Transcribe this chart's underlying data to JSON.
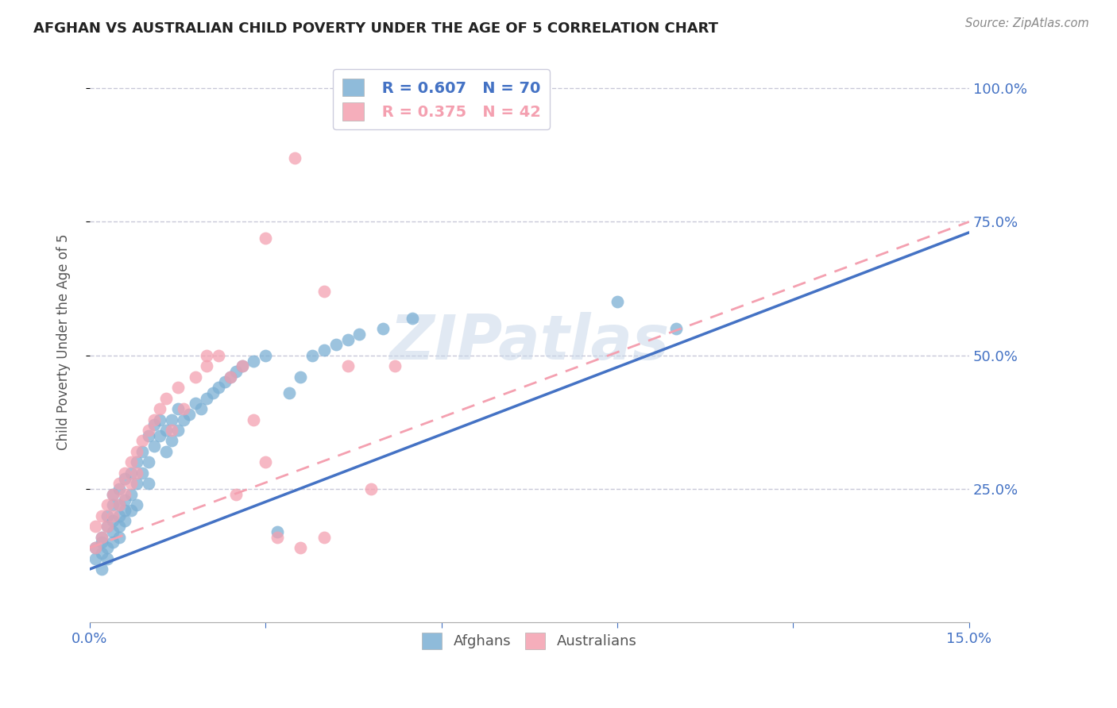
{
  "title": "AFGHAN VS AUSTRALIAN CHILD POVERTY UNDER THE AGE OF 5 CORRELATION CHART",
  "source": "Source: ZipAtlas.com",
  "ylabel": "Child Poverty Under the Age of 5",
  "xlim": [
    0.0,
    0.15
  ],
  "ylim": [
    0.0,
    1.05
  ],
  "yticks": [
    0.25,
    0.5,
    0.75,
    1.0
  ],
  "ytick_labels": [
    "25.0%",
    "50.0%",
    "75.0%",
    "100.0%"
  ],
  "xticks": [
    0.0,
    0.03,
    0.06,
    0.09,
    0.12,
    0.15
  ],
  "xtick_labels": [
    "0.0%",
    "",
    "",
    "",
    "",
    "15.0%"
  ],
  "legend_blue_R": "R = 0.607",
  "legend_blue_N": "N = 70",
  "legend_pink_R": "R = 0.375",
  "legend_pink_N": "N = 42",
  "blue_color": "#7BAFD4",
  "pink_color": "#F4A0B0",
  "blue_line_color": "#4472C4",
  "pink_line_color": "#F4A0B0",
  "grid_color": "#C8C8D8",
  "title_color": "#333333",
  "axis_label_color": "#4472C4",
  "watermark_color": "#C5D5E8",
  "watermark": "ZIPatlas",
  "afghans_x": [
    0.001,
    0.001,
    0.002,
    0.002,
    0.002,
    0.002,
    0.003,
    0.003,
    0.003,
    0.003,
    0.004,
    0.004,
    0.004,
    0.004,
    0.004,
    0.005,
    0.005,
    0.005,
    0.005,
    0.005,
    0.006,
    0.006,
    0.006,
    0.006,
    0.007,
    0.007,
    0.007,
    0.008,
    0.008,
    0.008,
    0.009,
    0.009,
    0.01,
    0.01,
    0.01,
    0.011,
    0.011,
    0.012,
    0.012,
    0.013,
    0.013,
    0.014,
    0.014,
    0.015,
    0.015,
    0.016,
    0.017,
    0.018,
    0.019,
    0.02,
    0.021,
    0.022,
    0.023,
    0.024,
    0.025,
    0.026,
    0.028,
    0.03,
    0.032,
    0.034,
    0.036,
    0.038,
    0.04,
    0.042,
    0.044,
    0.046,
    0.05,
    0.055,
    0.09,
    0.1
  ],
  "afghans_y": [
    0.14,
    0.12,
    0.13,
    0.15,
    0.1,
    0.16,
    0.18,
    0.12,
    0.2,
    0.14,
    0.17,
    0.22,
    0.15,
    0.19,
    0.24,
    0.2,
    0.16,
    0.22,
    0.18,
    0.25,
    0.23,
    0.19,
    0.27,
    0.21,
    0.28,
    0.24,
    0.21,
    0.3,
    0.26,
    0.22,
    0.32,
    0.28,
    0.3,
    0.35,
    0.26,
    0.33,
    0.37,
    0.35,
    0.38,
    0.36,
    0.32,
    0.38,
    0.34,
    0.4,
    0.36,
    0.38,
    0.39,
    0.41,
    0.4,
    0.42,
    0.43,
    0.44,
    0.45,
    0.46,
    0.47,
    0.48,
    0.49,
    0.5,
    0.17,
    0.43,
    0.46,
    0.5,
    0.51,
    0.52,
    0.53,
    0.54,
    0.55,
    0.57,
    0.6,
    0.55
  ],
  "australians_x": [
    0.001,
    0.001,
    0.002,
    0.002,
    0.003,
    0.003,
    0.004,
    0.004,
    0.005,
    0.005,
    0.006,
    0.006,
    0.007,
    0.007,
    0.008,
    0.008,
    0.009,
    0.01,
    0.011,
    0.012,
    0.013,
    0.014,
    0.015,
    0.016,
    0.018,
    0.02,
    0.022,
    0.024,
    0.026,
    0.028,
    0.03,
    0.032,
    0.036,
    0.04,
    0.044,
    0.048,
    0.052,
    0.04,
    0.025,
    0.02,
    0.03,
    0.035
  ],
  "australians_y": [
    0.18,
    0.14,
    0.2,
    0.16,
    0.22,
    0.18,
    0.24,
    0.2,
    0.26,
    0.22,
    0.28,
    0.24,
    0.3,
    0.26,
    0.32,
    0.28,
    0.34,
    0.36,
    0.38,
    0.4,
    0.42,
    0.36,
    0.44,
    0.4,
    0.46,
    0.48,
    0.5,
    0.46,
    0.48,
    0.38,
    0.3,
    0.16,
    0.14,
    0.16,
    0.48,
    0.25,
    0.48,
    0.62,
    0.24,
    0.5,
    0.72,
    0.87
  ],
  "blue_line_x": [
    0.0,
    0.15
  ],
  "blue_line_y": [
    0.1,
    0.73
  ],
  "pink_line_x": [
    0.0,
    0.15
  ],
  "pink_line_y": [
    0.14,
    0.75
  ]
}
